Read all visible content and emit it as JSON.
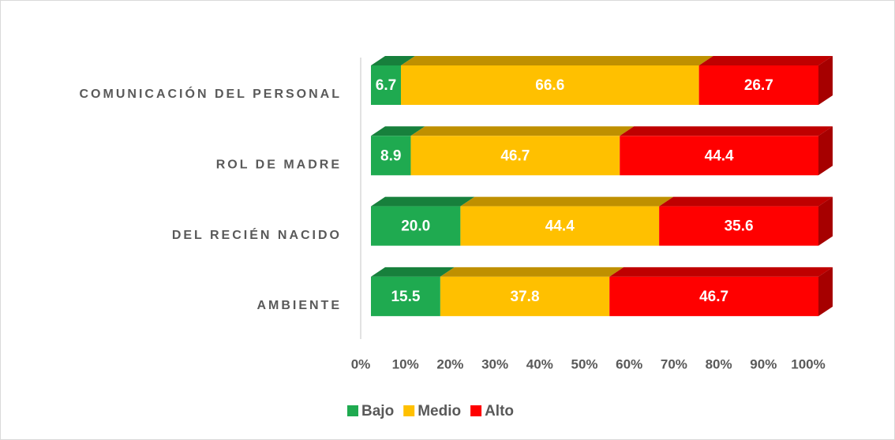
{
  "chart_data": {
    "type": "bar",
    "orientation": "horizontal",
    "stacked": true,
    "categories": [
      "COMUNICACIÓN DEL PERSONAL",
      "ROL DE MADRE",
      "DEL RECIÉN NACIDO",
      "AMBIENTE"
    ],
    "series": [
      {
        "name": "Bajo",
        "color": "#1faa50",
        "values": [
          6.7,
          8.9,
          20.0,
          15.5
        ],
        "value_labels": [
          "6.7",
          "8.9",
          "20.0",
          "15.5"
        ]
      },
      {
        "name": "Medio",
        "color": "#ffc000",
        "values": [
          66.6,
          46.7,
          44.4,
          37.8
        ],
        "value_labels": [
          "66.6",
          "46.7",
          "44.4",
          "37.8"
        ]
      },
      {
        "name": "Alto",
        "color": "#ff0000",
        "values": [
          26.7,
          44.4,
          35.6,
          46.7
        ],
        "value_labels": [
          "26.7",
          "44.4",
          "35.6",
          "46.7"
        ]
      }
    ],
    "xlim": [
      0,
      100
    ],
    "xticks": [
      {
        "value": 0,
        "label": "0%"
      },
      {
        "value": 10,
        "label": "10%"
      },
      {
        "value": 20,
        "label": "20%"
      },
      {
        "value": 30,
        "label": "30%"
      },
      {
        "value": 40,
        "label": "40%"
      },
      {
        "value": 50,
        "label": "50%"
      },
      {
        "value": 60,
        "label": "60%"
      },
      {
        "value": 70,
        "label": "70%"
      },
      {
        "value": 80,
        "label": "80%"
      },
      {
        "value": 90,
        "label": "90%"
      },
      {
        "value": 100,
        "label": "100%"
      }
    ],
    "legend": "bottom"
  }
}
